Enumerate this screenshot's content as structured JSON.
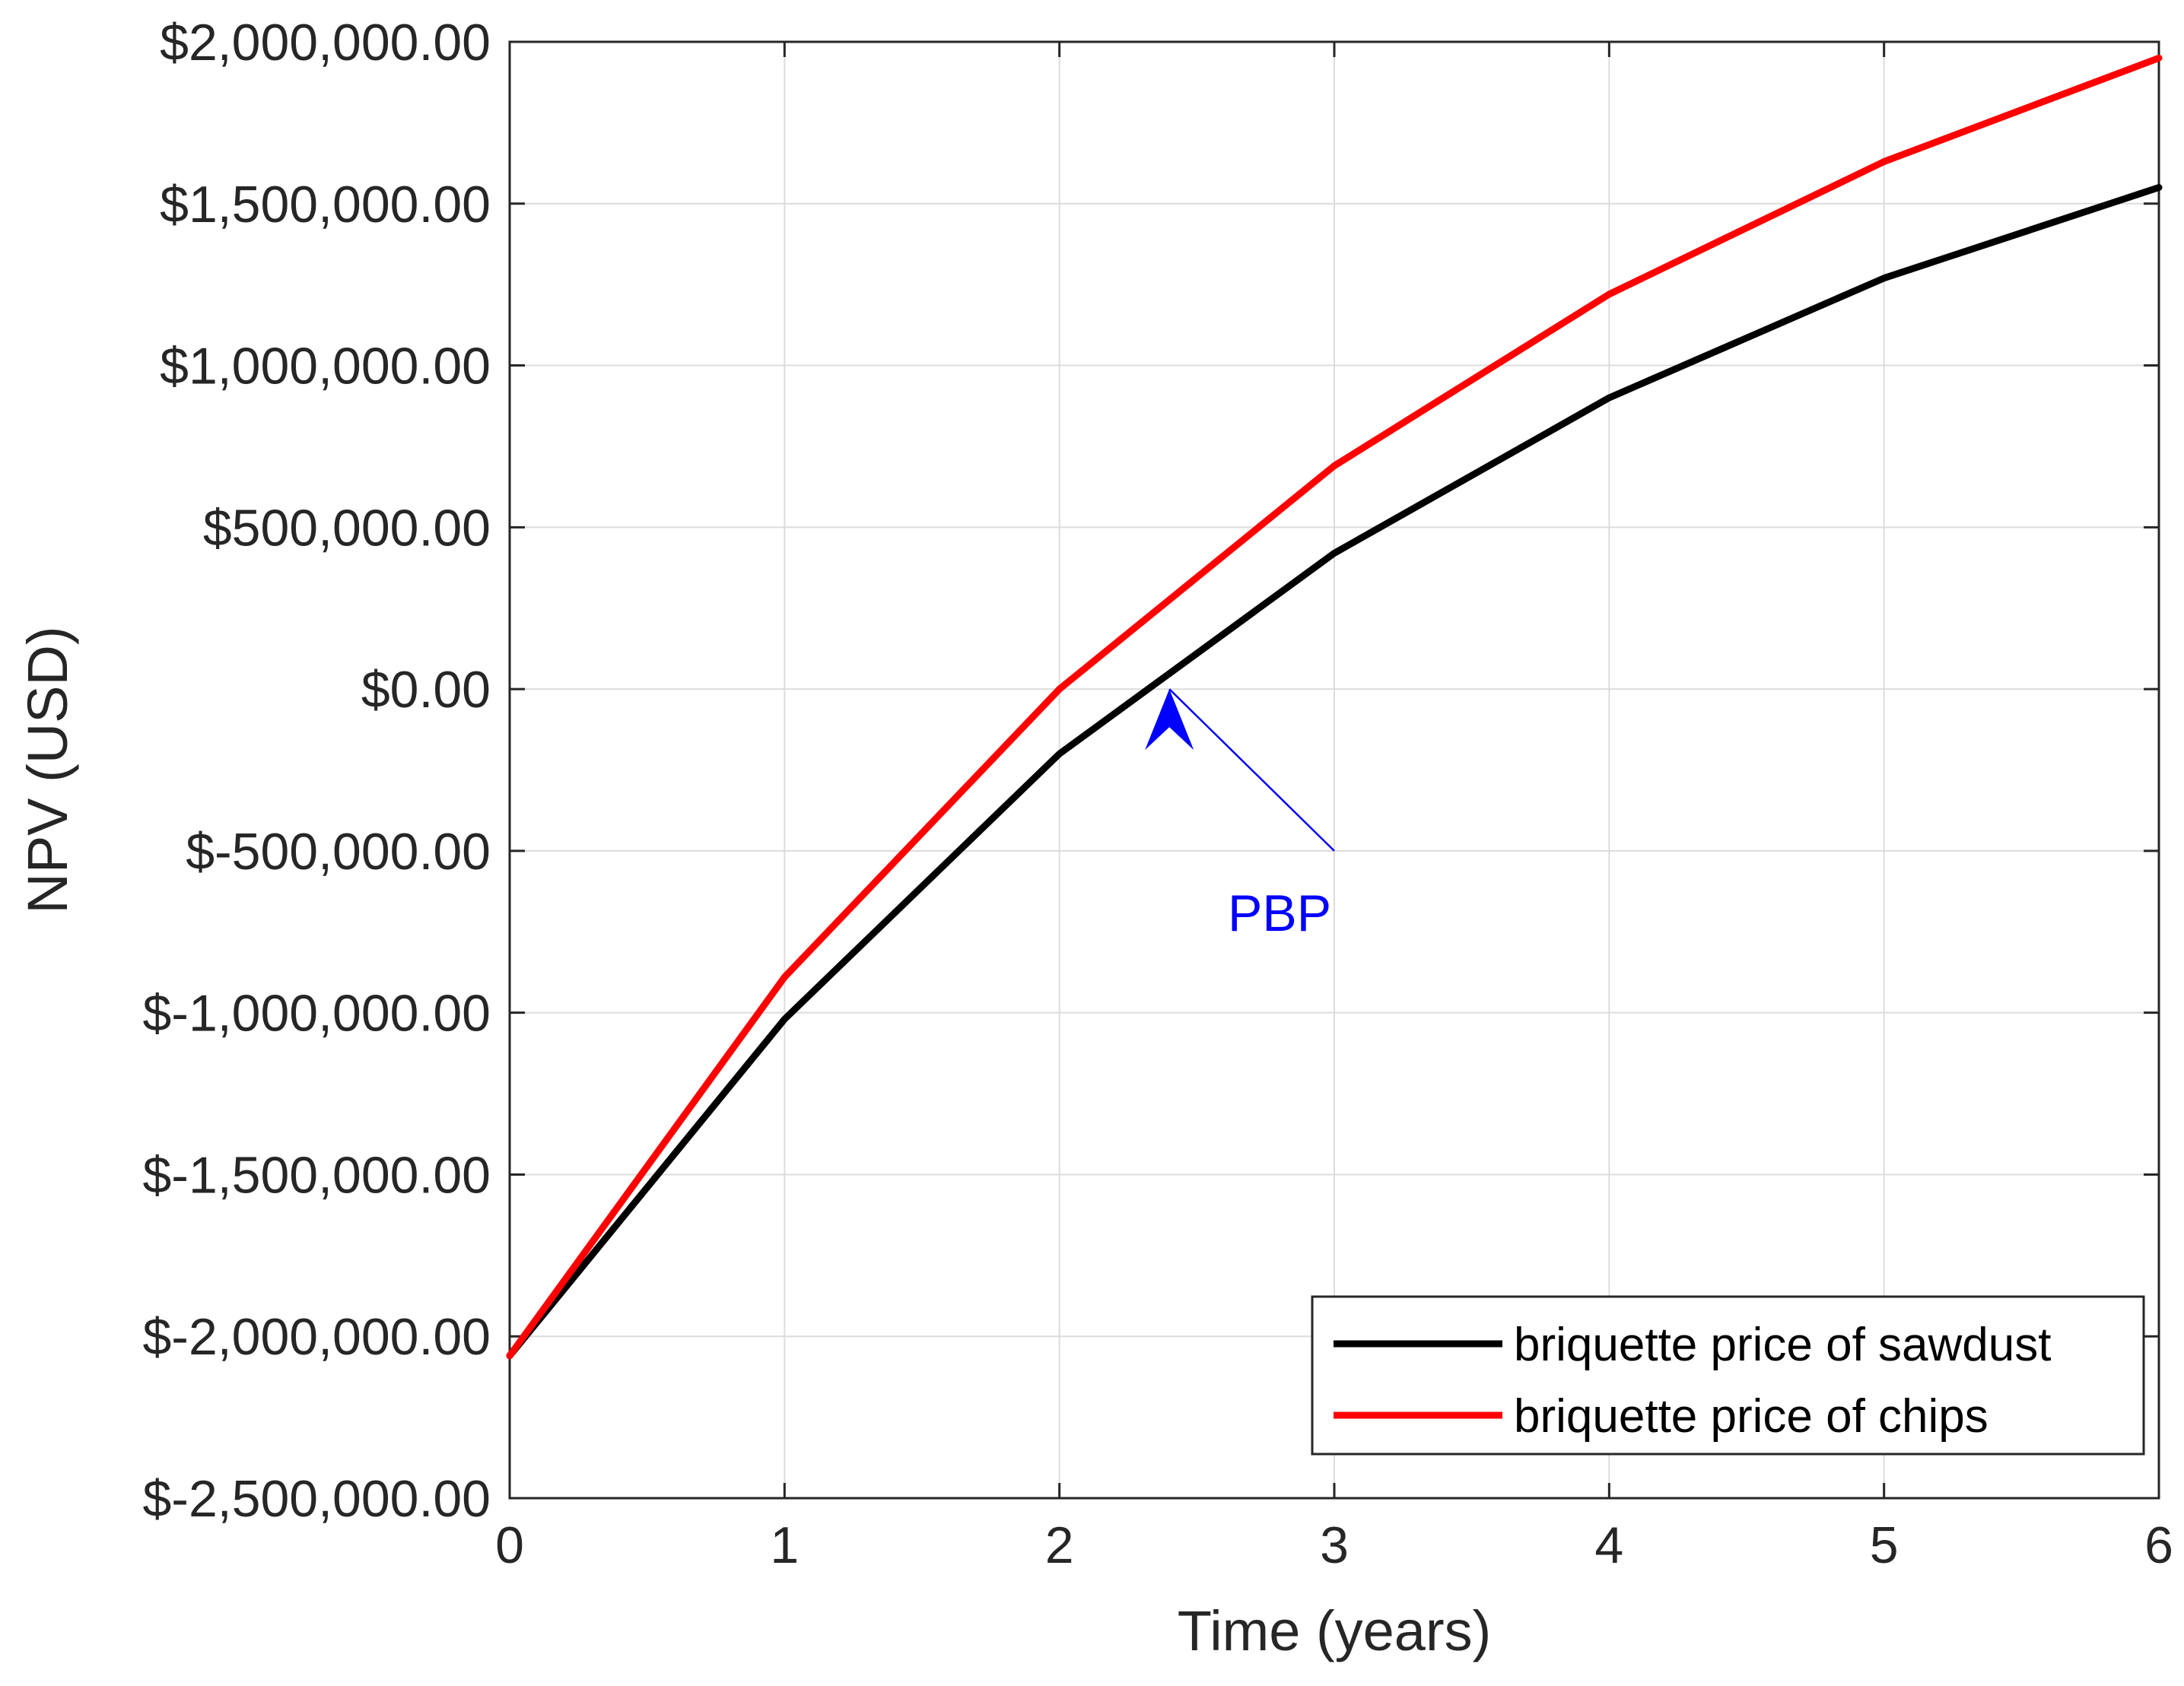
{
  "chart_data": {
    "type": "line",
    "title": "",
    "xlabel": "Time (years)",
    "ylabel": "NPV (USD)",
    "xlim": [
      0,
      6
    ],
    "ylim": [
      -2500000,
      2000000
    ],
    "grid": true,
    "legend_position": "bottom-right",
    "x": [
      0,
      1,
      2,
      3,
      4,
      5,
      6
    ],
    "x_tick_labels": [
      "0",
      "1",
      "2",
      "3",
      "4",
      "5",
      "6"
    ],
    "y_ticks": [
      2000000,
      1500000,
      1000000,
      500000,
      0,
      -500000,
      -1000000,
      -1500000,
      -2000000,
      -2500000
    ],
    "y_tick_labels": [
      "$2,000,000.00",
      "$1,500,000.00",
      "$1,000,000.00",
      "$500,000.00",
      "$0.00",
      "$-500,000.00",
      "$-1,000,000.00",
      "$-1,500,000.00",
      "$-2,000,000.00",
      "$-2,500,000.00"
    ],
    "series": [
      {
        "name": "briquette price of sawdust",
        "color": "#000000",
        "values": [
          -2060000,
          -1020000,
          -200000,
          420000,
          900000,
          1270000,
          1550000
        ]
      },
      {
        "name": "briquette price of chips",
        "color": "#ff0000",
        "values": [
          -2060000,
          -890000,
          0,
          690000,
          1220000,
          1630000,
          1950000
        ]
      }
    ],
    "annotations": [
      {
        "text": "PBP",
        "color": "#0000ff",
        "arrow_to": {
          "x": 2.4,
          "y": 0
        },
        "text_at": {
          "x": 3.0,
          "y": -500000
        }
      }
    ]
  }
}
